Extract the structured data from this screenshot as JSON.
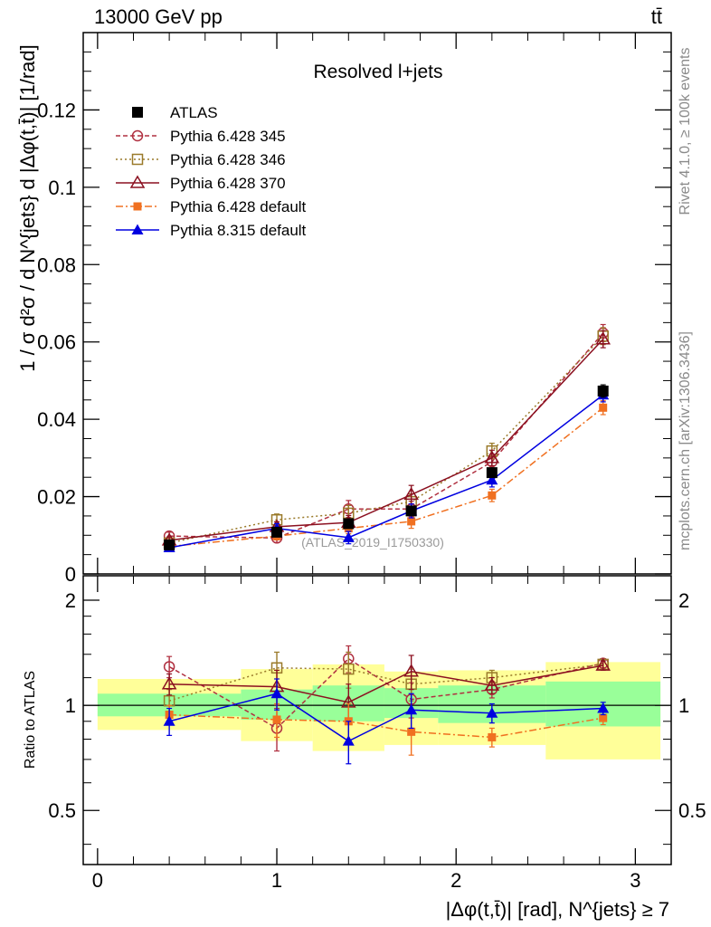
{
  "header": {
    "energy_label": "13000 GeV pp",
    "process_label": "tt̄",
    "side_rivet": "Rivet 4.1.0, ≥ 100k events",
    "side_mcplots": "mcplots.cern.ch [arXiv:1306.3436]",
    "analysis_id": "(ATLAS_2019_I1750330)"
  },
  "chart_data": [
    {
      "type": "line",
      "panel": "main",
      "title": "Resolved l+jets",
      "ylabel": "1 / σ d²σ / d N^{jets} d |Δφ(t,t̄)| [1/rad]",
      "xlim": [
        -0.08,
        3.2
      ],
      "ylim": [
        0,
        0.14
      ],
      "yticks": [
        0,
        0.02,
        0.04,
        0.06,
        0.08,
        0.1,
        0.12
      ],
      "ytick_labels": [
        "0",
        "0.02",
        "0.04",
        "0.06",
        "0.08",
        "0.1",
        "0.12"
      ],
      "bin_edges": [
        0,
        0.8,
        1.2,
        1.6,
        1.9,
        2.5,
        3.14
      ],
      "x": [
        0.4,
        1.0,
        1.4,
        1.75,
        2.2,
        2.82
      ],
      "series": [
        {
          "name": "ATLAS",
          "color": "#000000",
          "marker": "square-filled",
          "dash": "none",
          "values": [
            0.0075,
            0.0108,
            0.013,
            0.0163,
            0.0262,
            0.0473
          ],
          "errors": [
            0.0006,
            0.0007,
            0.0008,
            0.001,
            0.0012,
            0.0016
          ]
        },
        {
          "name": "Pythia 6.428 345",
          "color": "#b03040",
          "marker": "circle-open",
          "dash": "5,3",
          "values": [
            0.0098,
            0.0093,
            0.0168,
            0.0168,
            0.029,
            0.0623
          ],
          "errors": [
            0.001,
            0.0012,
            0.0022,
            0.002,
            0.002,
            0.0022
          ]
        },
        {
          "name": "Pythia 6.428 346",
          "color": "#9a7a2a",
          "marker": "square-open",
          "dash": "2,3",
          "values": [
            0.008,
            0.014,
            0.0157,
            0.0187,
            0.0318,
            0.0615
          ],
          "errors": [
            0.0009,
            0.0015,
            0.002,
            0.002,
            0.002,
            0.0022
          ]
        },
        {
          "name": "Pythia 6.428 370",
          "color": "#8b1020",
          "marker": "triangle-open",
          "dash": "none",
          "values": [
            0.0087,
            0.0122,
            0.0133,
            0.0205,
            0.03,
            0.0607
          ],
          "errors": [
            0.0009,
            0.0013,
            0.0018,
            0.0024,
            0.002,
            0.0022
          ]
        },
        {
          "name": "Pythia 6.428 default",
          "color": "#f07020",
          "marker": "square-filled-small",
          "dash": "8,3,2,3",
          "values": [
            0.0071,
            0.0098,
            0.0118,
            0.0136,
            0.0203,
            0.043
          ],
          "errors": [
            0.0007,
            0.001,
            0.0014,
            0.0018,
            0.0016,
            0.0018
          ]
        },
        {
          "name": "Pythia 8.315 default",
          "color": "#0000e0",
          "marker": "triangle-filled",
          "dash": "none",
          "values": [
            0.0068,
            0.0118,
            0.0094,
            0.0163,
            0.0243,
            0.0463
          ],
          "errors": [
            0.0006,
            0.0012,
            0.0016,
            0.0018,
            0.0018,
            0.0018
          ]
        }
      ]
    },
    {
      "type": "line",
      "panel": "ratio",
      "ylabel": "Ratio to ATLAS",
      "xlabel": "|Δφ(t,t̄)| [rad], N^{jets} ≥ 7",
      "xlim": [
        -0.08,
        3.2
      ],
      "ylim": [
        0.35,
        2.35
      ],
      "log_y": true,
      "yticks": [
        0.5,
        1,
        2
      ],
      "ytick_labels": [
        "0.5",
        "1",
        "2"
      ],
      "xticks": [
        0,
        1,
        2,
        3
      ],
      "xtick_labels": [
        "0",
        "1",
        "2",
        "3"
      ],
      "reference_line": 1.0,
      "bands": {
        "bin_edges": [
          0,
          0.8,
          1.2,
          1.6,
          1.9,
          2.5,
          3.14
        ],
        "inner_low": [
          0.93,
          0.91,
          0.9,
          0.92,
          0.89,
          0.87
        ],
        "inner_high": [
          1.08,
          1.11,
          1.14,
          1.12,
          1.14,
          1.17
        ],
        "outer_low": [
          0.85,
          0.79,
          0.74,
          0.77,
          0.77,
          0.7
        ],
        "outer_high": [
          1.19,
          1.27,
          1.31,
          1.25,
          1.26,
          1.33
        ],
        "inner_color": "#99ff99",
        "outer_color": "#ffff99"
      },
      "series": [
        {
          "name": "Pythia 6.428 345",
          "values": [
            1.29,
            0.86,
            1.36,
            1.04,
            1.11,
            1.32
          ],
          "errors": [
            0.09,
            0.12,
            0.12,
            0.12,
            0.06,
            0.04
          ]
        },
        {
          "name": "Pythia 6.428 346",
          "values": [
            1.03,
            1.28,
            1.27,
            1.15,
            1.2,
            1.31
          ],
          "errors": [
            0.08,
            0.14,
            0.15,
            0.12,
            0.06,
            0.04
          ]
        },
        {
          "name": "Pythia 6.428 370",
          "values": [
            1.15,
            1.13,
            1.02,
            1.25,
            1.14,
            1.3
          ],
          "errors": [
            0.08,
            0.13,
            0.13,
            0.14,
            0.06,
            0.04
          ]
        },
        {
          "name": "Pythia 6.428 default",
          "values": [
            0.94,
            0.91,
            0.9,
            0.84,
            0.81,
            0.92
          ],
          "errors": [
            0.06,
            0.1,
            0.11,
            0.12,
            0.05,
            0.04
          ]
        },
        {
          "name": "Pythia 8.315 default",
          "values": [
            0.9,
            1.08,
            0.79,
            0.97,
            0.95,
            0.98
          ],
          "errors": [
            0.08,
            0.11,
            0.11,
            0.11,
            0.06,
            0.04
          ]
        }
      ]
    }
  ]
}
